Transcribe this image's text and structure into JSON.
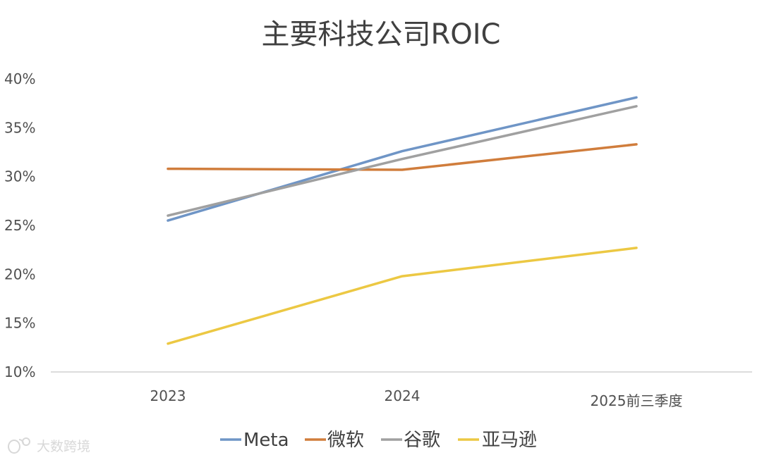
{
  "watermark": {
    "label": "大数跨境"
  },
  "chart_data": {
    "type": "line",
    "title": "主要科技公司ROIC",
    "xlabel": "",
    "ylabel": "",
    "categories": [
      "2023",
      "2024",
      "2025前三季度"
    ],
    "ylim": [
      0.1,
      0.4
    ],
    "yticks": [
      0.1,
      0.15,
      0.2,
      0.25,
      0.3,
      0.35,
      0.4
    ],
    "ytick_labels": [
      "10%",
      "15%",
      "20%",
      "25%",
      "30%",
      "35%",
      "40%"
    ],
    "grid": false,
    "legend_position": "bottom",
    "series": [
      {
        "name": "Meta",
        "color": "#6f95c6",
        "values": [
          0.255,
          0.326,
          0.381
        ]
      },
      {
        "name": "微软",
        "color": "#d07d3c",
        "values": [
          0.308,
          0.307,
          0.333
        ]
      },
      {
        "name": "谷歌",
        "color": "#a0a0a0",
        "values": [
          0.26,
          0.318,
          0.372
        ]
      },
      {
        "name": "亚马逊",
        "color": "#ecc843",
        "values": [
          0.129,
          0.198,
          0.227
        ]
      }
    ]
  }
}
